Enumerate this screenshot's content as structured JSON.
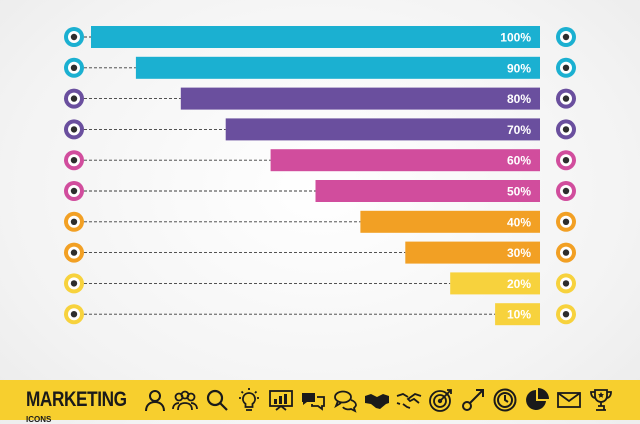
{
  "chart_data": {
    "type": "bar",
    "orientation": "horizontal",
    "categories": [
      "100%",
      "90%",
      "80%",
      "70%",
      "60%",
      "50%",
      "40%",
      "30%",
      "20%",
      "10%"
    ],
    "values": [
      100,
      90,
      80,
      70,
      60,
      50,
      40,
      30,
      20,
      10
    ],
    "colors": [
      "#1bb0d1",
      "#1bb0d1",
      "#6a4f9e",
      "#6a4f9e",
      "#d14d9d",
      "#d14d9d",
      "#f2a024",
      "#f2a024",
      "#f7d23d",
      "#f7d23d"
    ],
    "xlim": [
      0,
      100
    ],
    "grid": false,
    "legend": "none"
  },
  "footer": {
    "title": "MARKETING",
    "subtitle": "ICONS",
    "background": "#f7cf2e",
    "icons": [
      "user-icon",
      "group-icon",
      "search-icon",
      "lightbulb-icon",
      "presentation-icon",
      "speech-bubbles-icon",
      "chat-icon",
      "handshake-icon",
      "deal-icon",
      "target-icon",
      "growth-arrow-icon",
      "clock-icon",
      "pie-chart-icon",
      "envelope-icon",
      "trophy-icon"
    ]
  }
}
